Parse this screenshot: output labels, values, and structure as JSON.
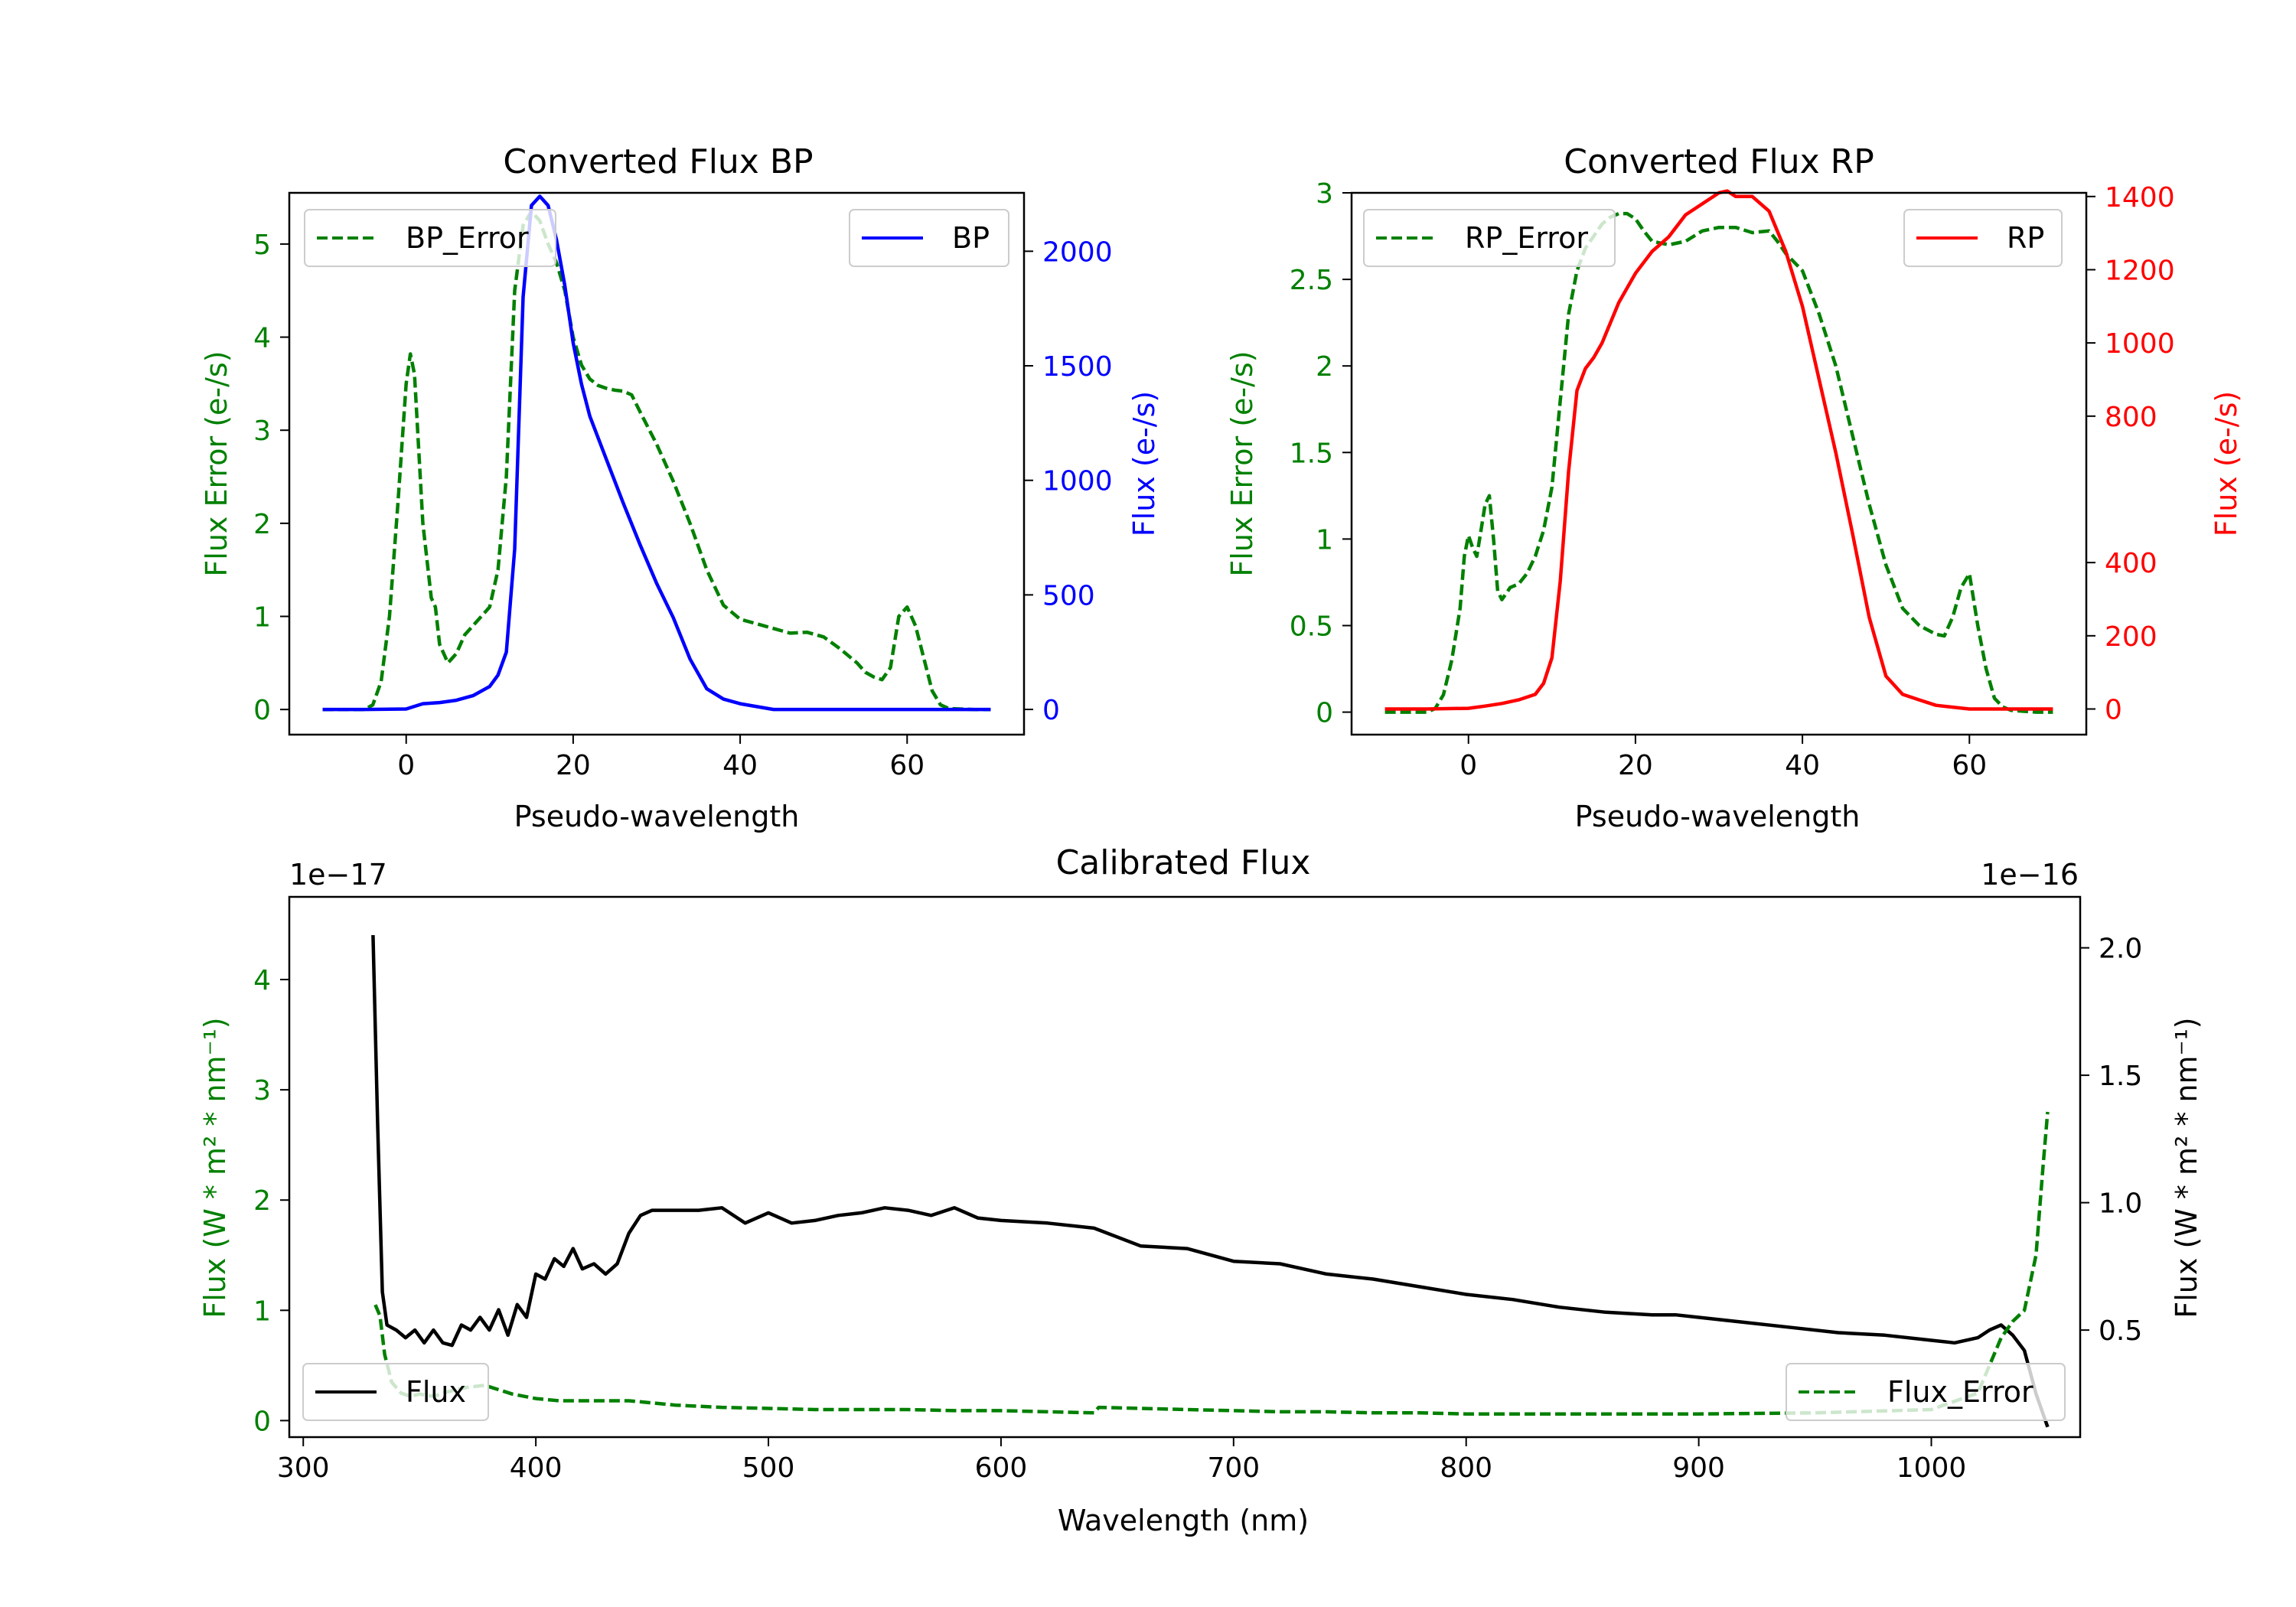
{
  "colors": {
    "error": "#008000",
    "bp": "#0000ff",
    "rp": "#ff0000",
    "flux": "#000000",
    "axis": "#000000"
  },
  "chart_data": [
    {
      "id": "bp",
      "type": "line",
      "title": "Converted Flux BP",
      "xlabel": "Pseudo-wavelength",
      "ylabel_left": "Flux Error (e-/s)",
      "ylabel_right": "Flux (e-/s)",
      "xlim": [
        -14,
        74
      ],
      "ylim_left": [
        -0.27,
        5.55
      ],
      "ylim_right": [
        -110,
        2255
      ],
      "xticks": [
        0,
        20,
        40,
        60
      ],
      "yticks_left": [
        0,
        1,
        2,
        3,
        4,
        5
      ],
      "yticks_right": [
        0,
        500,
        1000,
        1500,
        2000
      ],
      "legend_left": "BP_Error",
      "legend_right": "BP",
      "series": [
        {
          "name": "BP_Error",
          "axis": "left",
          "style": "dashed",
          "colorKey": "error",
          "x": [
            -10,
            -5,
            -4,
            -3,
            -2,
            -1,
            0,
            0.5,
            1,
            2,
            3,
            3.5,
            4,
            5,
            6,
            7,
            8,
            9,
            10,
            11,
            12,
            13,
            14,
            15,
            16,
            17,
            18,
            19,
            20,
            21,
            22,
            23,
            24,
            25,
            26,
            27,
            28,
            30,
            32,
            34,
            36,
            38,
            40,
            42,
            44,
            46,
            48,
            50,
            52,
            54,
            55,
            56,
            57,
            58,
            59,
            60,
            61,
            62,
            63,
            64,
            65,
            68,
            70
          ],
          "y": [
            0,
            0,
            0.05,
            0.3,
            1.0,
            2.2,
            3.5,
            3.82,
            3.6,
            2.0,
            1.2,
            1.1,
            0.7,
            0.5,
            0.6,
            0.8,
            0.9,
            1.0,
            1.1,
            1.5,
            2.5,
            4.5,
            5.2,
            5.35,
            5.25,
            5.0,
            4.8,
            4.5,
            4.0,
            3.7,
            3.55,
            3.48,
            3.45,
            3.43,
            3.42,
            3.38,
            3.2,
            2.85,
            2.45,
            2.0,
            1.5,
            1.12,
            0.97,
            0.92,
            0.87,
            0.82,
            0.83,
            0.78,
            0.65,
            0.5,
            0.4,
            0.35,
            0.32,
            0.45,
            1.0,
            1.1,
            0.9,
            0.55,
            0.2,
            0.05,
            0.01,
            0,
            0
          ]
        },
        {
          "name": "BP",
          "axis": "right",
          "style": "solid",
          "colorKey": "bp",
          "x": [
            -10,
            -5,
            0,
            2,
            4,
            6,
            8,
            10,
            11,
            12,
            13,
            14,
            15,
            16,
            17,
            18,
            19,
            20,
            21,
            22,
            24,
            26,
            28,
            30,
            32,
            34,
            36,
            38,
            40,
            44,
            48,
            52,
            56,
            60,
            65,
            70
          ],
          "y": [
            0,
            0,
            2,
            25,
            30,
            40,
            60,
            100,
            150,
            250,
            700,
            1800,
            2200,
            2240,
            2200,
            2050,
            1850,
            1600,
            1420,
            1280,
            1090,
            900,
            720,
            550,
            400,
            220,
            90,
            45,
            25,
            0,
            0,
            0,
            0,
            0,
            0,
            0
          ]
        }
      ]
    },
    {
      "id": "rp",
      "type": "line",
      "title": "Converted Flux RP",
      "xlabel": "Pseudo-wavelength",
      "ylabel_left": "Flux Error (e-/s)",
      "ylabel_right": "Flux (e-/s)",
      "xlim": [
        -14,
        74
      ],
      "ylim_left": [
        -0.13,
        3.0
      ],
      "ylim_right": [
        -70,
        1410
      ],
      "xticks": [
        0,
        20,
        40,
        60
      ],
      "yticks_left": [
        0.0,
        0.5,
        1.0,
        1.5,
        2.0,
        2.5,
        3.0
      ],
      "yticks_right": [
        0,
        200,
        400,
        800,
        1000,
        1200,
        1400
      ],
      "legend_left": "RP_Error",
      "legend_right": "RP",
      "series": [
        {
          "name": "RP_Error",
          "axis": "left",
          "style": "dashed",
          "colorKey": "error",
          "x": [
            -10,
            -5,
            -4,
            -3,
            -2,
            -1,
            -0.5,
            0,
            0.5,
            1,
            1.5,
            2,
            2.5,
            3,
            3.5,
            4,
            5,
            6,
            7,
            8,
            9,
            10,
            11,
            12,
            13,
            14,
            15,
            16,
            17,
            18,
            19,
            20,
            21,
            22,
            24,
            26,
            28,
            30,
            32,
            34,
            36,
            37,
            38,
            40,
            42,
            44,
            46,
            48,
            50,
            52,
            54,
            56,
            57,
            58,
            59,
            60,
            61,
            62,
            63,
            64,
            65,
            68,
            70
          ],
          "y": [
            0,
            0,
            0.02,
            0.1,
            0.3,
            0.6,
            0.9,
            1.02,
            0.95,
            0.9,
            1.05,
            1.2,
            1.25,
            1.0,
            0.7,
            0.65,
            0.72,
            0.74,
            0.8,
            0.9,
            1.05,
            1.3,
            1.8,
            2.3,
            2.55,
            2.68,
            2.75,
            2.82,
            2.86,
            2.88,
            2.88,
            2.85,
            2.78,
            2.72,
            2.7,
            2.72,
            2.78,
            2.8,
            2.8,
            2.77,
            2.78,
            2.72,
            2.65,
            2.55,
            2.3,
            2.0,
            1.6,
            1.2,
            0.85,
            0.6,
            0.5,
            0.45,
            0.44,
            0.55,
            0.72,
            0.8,
            0.5,
            0.25,
            0.08,
            0.03,
            0.01,
            0,
            0
          ]
        },
        {
          "name": "RP",
          "axis": "right",
          "style": "solid",
          "colorKey": "rp",
          "x": [
            -10,
            -5,
            0,
            2,
            4,
            6,
            8,
            9,
            10,
            11,
            12,
            13,
            14,
            15,
            16,
            18,
            20,
            22,
            24,
            26,
            28,
            30,
            31,
            32,
            34,
            36,
            38,
            40,
            42,
            44,
            46,
            48,
            50,
            52,
            54,
            56,
            60,
            65,
            70
          ],
          "y": [
            0,
            0,
            2,
            8,
            15,
            25,
            40,
            70,
            140,
            350,
            650,
            870,
            930,
            960,
            1000,
            1110,
            1190,
            1250,
            1290,
            1350,
            1380,
            1410,
            1415,
            1400,
            1400,
            1360,
            1250,
            1100,
            900,
            700,
            480,
            250,
            90,
            40,
            25,
            10,
            0,
            0,
            0
          ]
        }
      ]
    },
    {
      "id": "calibrated",
      "type": "line",
      "title": "Calibrated Flux",
      "xlabel": "Wavelength (nm)",
      "ylabel_left": "Flux (W * m² * nm⁻¹)",
      "ylabel_right": "Flux (W * m² * nm⁻¹)",
      "offset_left": "1e−17",
      "offset_right": "1e−16",
      "xlim": [
        294,
        1064
      ],
      "ylim_left": [
        -0.15,
        4.75
      ],
      "ylim_right": [
        0.08,
        2.2
      ],
      "xticks": [
        300,
        400,
        500,
        600,
        700,
        800,
        900,
        1000
      ],
      "yticks_left": [
        0,
        1,
        2,
        3,
        4
      ],
      "yticks_right": [
        0.5,
        1.0,
        1.5,
        2.0
      ],
      "yticklabels_right": [
        "0.5",
        "1.0",
        "1.5",
        "2.0"
      ],
      "legend_left": "Flux",
      "legend_right": "Flux_Error",
      "series": [
        {
          "name": "Flux",
          "axis": "right",
          "style": "solid",
          "colorKey": "flux",
          "x": [
            330,
            332,
            334,
            336,
            340,
            344,
            348,
            352,
            356,
            360,
            364,
            368,
            372,
            376,
            380,
            384,
            388,
            392,
            396,
            400,
            404,
            408,
            412,
            416,
            420,
            425,
            430,
            435,
            440,
            445,
            450,
            455,
            460,
            470,
            480,
            490,
            500,
            510,
            520,
            530,
            540,
            550,
            560,
            570,
            580,
            590,
            600,
            620,
            640,
            660,
            680,
            700,
            720,
            740,
            760,
            780,
            800,
            820,
            840,
            860,
            880,
            890,
            900,
            920,
            940,
            960,
            980,
            1000,
            1010,
            1020,
            1025,
            1030,
            1035,
            1040,
            1045,
            1050
          ],
          "y": [
            2.05,
            1.3,
            0.65,
            0.52,
            0.5,
            0.47,
            0.5,
            0.45,
            0.5,
            0.45,
            0.44,
            0.52,
            0.5,
            0.55,
            0.5,
            0.58,
            0.48,
            0.6,
            0.55,
            0.72,
            0.7,
            0.78,
            0.75,
            0.82,
            0.74,
            0.76,
            0.72,
            0.76,
            0.88,
            0.95,
            0.97,
            0.97,
            0.97,
            0.97,
            0.98,
            0.92,
            0.96,
            0.92,
            0.93,
            0.95,
            0.96,
            0.98,
            0.97,
            0.95,
            0.98,
            0.94,
            0.93,
            0.92,
            0.9,
            0.83,
            0.82,
            0.77,
            0.76,
            0.72,
            0.7,
            0.67,
            0.64,
            0.62,
            0.59,
            0.57,
            0.56,
            0.56,
            0.55,
            0.53,
            0.51,
            0.49,
            0.48,
            0.46,
            0.45,
            0.47,
            0.5,
            0.52,
            0.48,
            0.42,
            0.25,
            0.12
          ]
        },
        {
          "name": "Flux_Error",
          "axis": "left",
          "style": "dashed",
          "colorKey": "error",
          "x": [
            331,
            333,
            335,
            338,
            342,
            346,
            350,
            356,
            362,
            370,
            378,
            384,
            390,
            395,
            400,
            410,
            420,
            430,
            440,
            450,
            460,
            480,
            500,
            520,
            540,
            560,
            580,
            600,
            620,
            640,
            642,
            660,
            680,
            700,
            720,
            740,
            760,
            780,
            800,
            850,
            900,
            950,
            1000,
            1020,
            1025,
            1030,
            1035,
            1040,
            1045,
            1048,
            1050
          ],
          "y": [
            1.05,
            0.95,
            0.6,
            0.35,
            0.25,
            0.22,
            0.24,
            0.22,
            0.26,
            0.3,
            0.32,
            0.28,
            0.24,
            0.22,
            0.2,
            0.18,
            0.18,
            0.18,
            0.18,
            0.16,
            0.14,
            0.12,
            0.11,
            0.1,
            0.1,
            0.1,
            0.09,
            0.09,
            0.08,
            0.07,
            0.12,
            0.11,
            0.1,
            0.09,
            0.08,
            0.08,
            0.07,
            0.07,
            0.06,
            0.06,
            0.06,
            0.07,
            0.1,
            0.25,
            0.5,
            0.75,
            0.9,
            1.0,
            1.5,
            2.3,
            2.8
          ]
        }
      ]
    }
  ]
}
